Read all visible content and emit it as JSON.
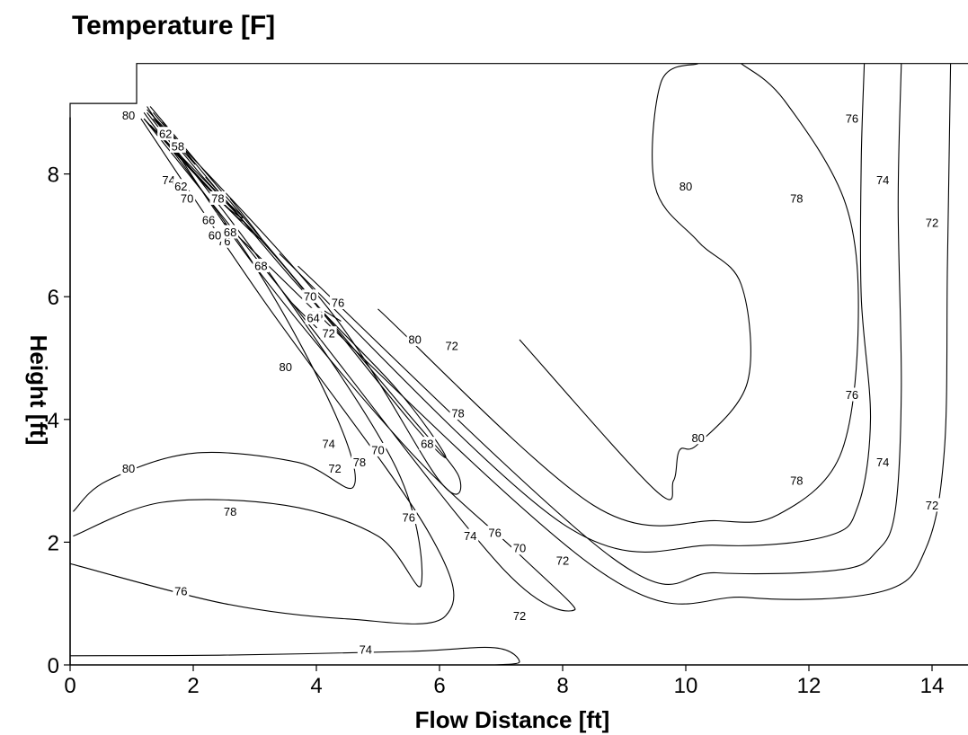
{
  "chart_data": {
    "type": "contour",
    "title": "Temperature [F]",
    "xlabel": "Flow Distance [ft]",
    "ylabel": "Height [ft]",
    "xlim": [
      0,
      14.7
    ],
    "ylim": [
      0,
      9.8
    ],
    "x_ticks": [
      "0",
      "2",
      "4",
      "6",
      "8",
      "10",
      "12",
      "14"
    ],
    "y_ticks": [
      "0",
      "2",
      "4",
      "6",
      "8"
    ],
    "boundary": [
      [
        0,
        0
      ],
      [
        0,
        9.15
      ],
      [
        1.08,
        9.15
      ],
      [
        1.08,
        9.8
      ],
      [
        14.7,
        9.8
      ],
      [
        14.7,
        0
      ]
    ],
    "contours": [
      {
        "level": 80,
        "points": [
          [
            1.2,
            9.0
          ],
          [
            3.0,
            6.5
          ],
          [
            4.3,
            4.1
          ],
          [
            4.6,
            2.9
          ],
          [
            3.7,
            3.3
          ],
          [
            2.0,
            3.45
          ],
          [
            0.6,
            3.0
          ],
          [
            0.05,
            2.5
          ]
        ],
        "label": "80",
        "label_at": [
          [
            0.95,
            8.95
          ],
          [
            3.5,
            4.85
          ],
          [
            0.95,
            3.2
          ]
        ]
      },
      {
        "level": 78,
        "points": [
          [
            1.25,
            9.0
          ],
          [
            3.3,
            6.3
          ],
          [
            5.3,
            3.2
          ],
          [
            5.7,
            1.3
          ],
          [
            5.0,
            2.1
          ],
          [
            3.5,
            2.6
          ],
          [
            1.5,
            2.65
          ],
          [
            0.05,
            2.1
          ]
        ],
        "label": "78",
        "label_at": [
          [
            2.4,
            7.6
          ],
          [
            4.7,
            3.3
          ],
          [
            2.6,
            2.5
          ]
        ]
      },
      {
        "level": 76,
        "points": [
          [
            1.15,
            8.9
          ],
          [
            3.1,
            6.0
          ],
          [
            5.8,
            2.2
          ],
          [
            6.1,
            0.8
          ],
          [
            4.5,
            0.75
          ],
          [
            2.5,
            1.0
          ],
          [
            0,
            1.65
          ]
        ],
        "label": "76",
        "label_at": [
          [
            2.5,
            6.9
          ],
          [
            5.5,
            2.4
          ],
          [
            1.8,
            1.2
          ]
        ]
      },
      {
        "level": 74,
        "points": [
          [
            0,
            0.15
          ],
          [
            2.5,
            0.16
          ],
          [
            5.5,
            0.22
          ],
          [
            6.9,
            0.28
          ],
          [
            7.3,
            0.05
          ],
          [
            6.9,
            0.0
          ]
        ],
        "label": "74",
        "label_at": [
          [
            4.8,
            0.25
          ],
          [
            4.2,
            3.6
          ],
          [
            1.6,
            7.9
          ]
        ]
      },
      {
        "level": 72,
        "points": [
          [
            1.2,
            8.9
          ],
          [
            3.6,
            5.9
          ],
          [
            7.0,
            1.6
          ],
          [
            8.2,
            0.9
          ],
          [
            7.3,
            1.8
          ],
          [
            5.5,
            3.5
          ],
          [
            3.0,
            6.5
          ],
          [
            1.25,
            9.1
          ]
        ],
        "label": "72",
        "label_at": [
          [
            4.2,
            5.4
          ],
          [
            7.3,
            0.8
          ],
          [
            4.3,
            3.2
          ]
        ]
      },
      {
        "level": 70,
        "points": [
          [
            1.25,
            9.05
          ],
          [
            4.2,
            5.8
          ],
          [
            6.0,
            3.0
          ],
          [
            6.3,
            3.1
          ],
          [
            5.4,
            4.2
          ],
          [
            3.9,
            6.0
          ],
          [
            1.3,
            9.1
          ]
        ],
        "label": "70",
        "label_at": [
          [
            1.9,
            7.6
          ],
          [
            3.9,
            6.0
          ],
          [
            5.0,
            3.5
          ],
          [
            7.3,
            1.9
          ]
        ]
      },
      {
        "level": 80,
        "points": [
          [
            7.3,
            5.3
          ],
          [
            9.5,
            2.85
          ],
          [
            9.8,
            3.0
          ],
          [
            9.9,
            3.5
          ],
          [
            10.2,
            3.6
          ],
          [
            11.0,
            4.6
          ],
          [
            10.9,
            6.2
          ],
          [
            10.2,
            6.9
          ],
          [
            9.5,
            7.8
          ],
          [
            9.6,
            9.5
          ],
          [
            10.2,
            9.8
          ]
        ],
        "label": "80",
        "label_at": [
          [
            5.6,
            5.3
          ],
          [
            10.2,
            3.7
          ],
          [
            10.0,
            7.8
          ]
        ]
      },
      {
        "level": 78,
        "points": [
          [
            5.0,
            5.8
          ],
          [
            8.5,
            2.6
          ],
          [
            10.5,
            2.35
          ],
          [
            11.5,
            2.45
          ],
          [
            12.5,
            3.4
          ],
          [
            12.8,
            5.5
          ],
          [
            12.6,
            7.5
          ],
          [
            11.6,
            9.2
          ],
          [
            10.9,
            9.8
          ]
        ],
        "label": "78",
        "label_at": [
          [
            6.3,
            4.1
          ],
          [
            11.8,
            3.0
          ],
          [
            11.8,
            7.6
          ]
        ]
      },
      {
        "level": 76,
        "points": [
          [
            3.4,
            6.7
          ],
          [
            8.0,
            2.3
          ],
          [
            10.5,
            1.95
          ],
          [
            12.3,
            2.1
          ],
          [
            12.8,
            2.6
          ],
          [
            13.0,
            4.0
          ],
          [
            12.85,
            6.0
          ],
          [
            12.85,
            8.2
          ],
          [
            12.9,
            9.8
          ]
        ],
        "label": "76",
        "label_at": [
          [
            6.9,
            2.15
          ],
          [
            12.7,
            4.4
          ],
          [
            12.7,
            8.9
          ]
        ]
      },
      {
        "level": 74,
        "points": [
          [
            3.7,
            6.5
          ],
          [
            8.8,
            1.75
          ],
          [
            10.5,
            1.5
          ],
          [
            12.5,
            1.55
          ],
          [
            13.1,
            1.85
          ],
          [
            13.4,
            2.5
          ],
          [
            13.5,
            4.5
          ],
          [
            13.45,
            7.5
          ],
          [
            13.5,
            9.8
          ]
        ],
        "label": "74",
        "label_at": [
          [
            6.5,
            2.1
          ],
          [
            13.2,
            3.3
          ],
          [
            13.2,
            7.9
          ]
        ]
      },
      {
        "level": 72,
        "points": [
          [
            2.5,
            7.2
          ],
          [
            8.5,
            1.6
          ],
          [
            11.0,
            1.1
          ],
          [
            13.2,
            1.2
          ],
          [
            13.9,
            1.9
          ],
          [
            14.2,
            3.5
          ],
          [
            14.25,
            6.5
          ],
          [
            14.3,
            9.8
          ]
        ],
        "label": "72",
        "label_at": [
          [
            6.2,
            5.2
          ],
          [
            8.0,
            1.7
          ],
          [
            14.0,
            2.6
          ],
          [
            14.0,
            7.2
          ]
        ]
      },
      {
        "level": 62,
        "points": [
          [
            1.2,
            8.9
          ],
          [
            2.4,
            7.6
          ],
          [
            2.8,
            7.3
          ],
          [
            2.2,
            7.9
          ],
          [
            1.3,
            9.0
          ]
        ],
        "label": "62",
        "label_at": [
          [
            1.55,
            8.65
          ],
          [
            1.8,
            7.8
          ]
        ]
      },
      {
        "level": 58,
        "points": [
          [
            1.35,
            8.9
          ],
          [
            1.9,
            8.3
          ],
          [
            2.0,
            8.2
          ],
          [
            1.5,
            8.85
          ]
        ],
        "label": "58",
        "label_at": [
          [
            1.75,
            8.45
          ]
        ]
      },
      {
        "level": 68,
        "points": [
          [
            1.3,
            8.8
          ],
          [
            3.3,
            6.7
          ],
          [
            5.5,
            4.0
          ],
          [
            6.1,
            3.4
          ],
          [
            5.3,
            4.5
          ],
          [
            3.6,
            6.3
          ],
          [
            1.35,
            9.0
          ]
        ],
        "label": "68",
        "label_at": [
          [
            2.6,
            7.05
          ],
          [
            3.1,
            6.5
          ],
          [
            5.8,
            3.6
          ]
        ]
      },
      {
        "level": 66,
        "points": [
          [
            1.4,
            8.7
          ],
          [
            2.7,
            7.3
          ],
          [
            3.1,
            6.95
          ],
          [
            2.6,
            7.6
          ]
        ],
        "label": "66",
        "label_at": [
          [
            2.25,
            7.25
          ],
          [
            4.0,
            5.7
          ]
        ]
      },
      {
        "level": 60,
        "points": [
          [
            1.7,
            8.35
          ],
          [
            2.5,
            7.5
          ],
          [
            2.8,
            7.25
          ],
          [
            2.2,
            7.95
          ]
        ],
        "label": "60",
        "label_at": [
          [
            2.35,
            7.0
          ]
        ]
      },
      {
        "level": 64,
        "points": [
          [
            3.6,
            5.9
          ],
          [
            4.0,
            5.5
          ],
          [
            3.8,
            5.7
          ]
        ],
        "label": "64",
        "label_at": [
          [
            3.95,
            5.65
          ]
        ]
      },
      {
        "level": 76,
        "points": [
          [
            4.0,
            5.85
          ],
          [
            4.4,
            5.6
          ]
        ],
        "label": "76",
        "label_at": [
          [
            4.35,
            5.9
          ]
        ]
      }
    ]
  }
}
